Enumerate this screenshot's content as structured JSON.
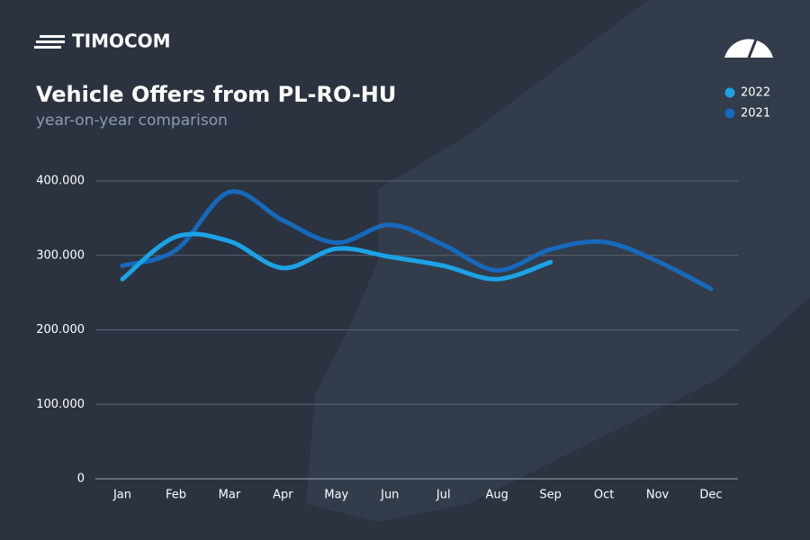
{
  "brand": "TIMOCOM",
  "chart_data": {
    "type": "line",
    "title": "Vehicle Offers from PL-RO-HU",
    "subtitle": "year-on-year comparison",
    "categories": [
      "Jan",
      "Feb",
      "Mar",
      "Apr",
      "May",
      "Jun",
      "Jul",
      "Aug",
      "Sep",
      "Oct",
      "Nov",
      "Dec"
    ],
    "series": [
      {
        "name": "2022",
        "color": "#1ba3e6",
        "values": [
          268000,
          325000,
          319000,
          283000,
          309000,
          298000,
          286000,
          268000,
          291000,
          null,
          null,
          null
        ]
      },
      {
        "name": "2021",
        "color": "#1669bb",
        "values": [
          286000,
          307000,
          385000,
          347000,
          317000,
          341000,
          314000,
          280000,
          308000,
          318000,
          292000,
          255000
        ]
      }
    ],
    "ylim": [
      0,
      400000
    ],
    "yticks": [
      0,
      {
        "value": 100000,
        "label": "100.000"
      },
      {
        "value": 200000,
        "label": "200.000"
      },
      {
        "value": 300000,
        "label": "300.000"
      },
      {
        "value": 400000,
        "label": "400.000"
      }
    ],
    "grid": true,
    "legend": "top-right"
  }
}
